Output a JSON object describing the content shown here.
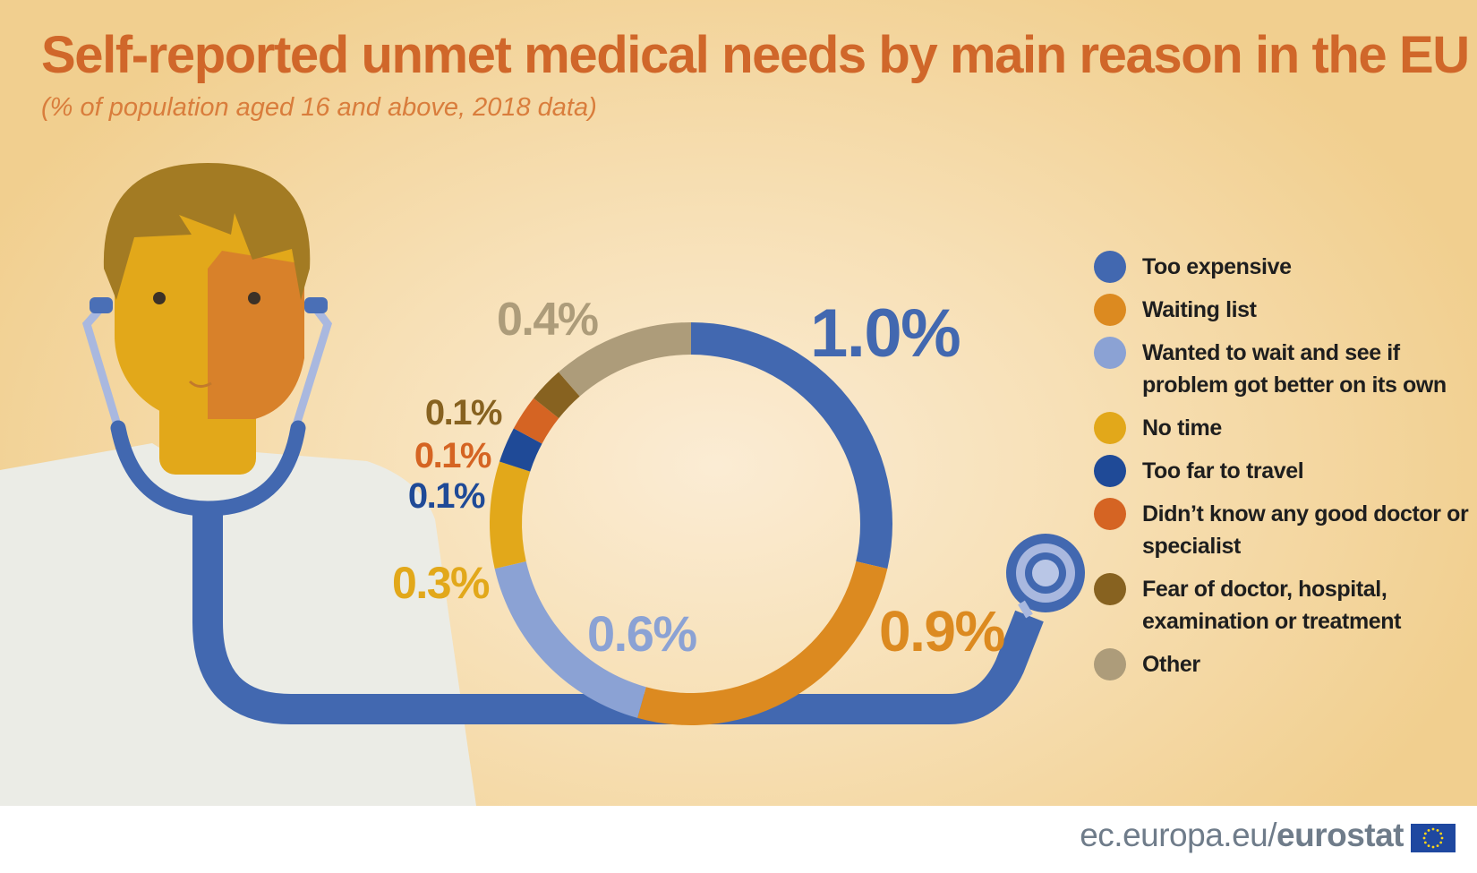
{
  "title": "Self-reported unmet medical needs by main reason in the EU",
  "subtitle": "(% of population aged 16 and above, 2018 data)",
  "chart_data": {
    "type": "donut",
    "title": "Self-reported unmet medical needs by main reason in the EU",
    "subtitle": "(% of population aged 16 and above, 2018 data)",
    "unit": "%",
    "slices": [
      {
        "name": "Too expensive",
        "value": 1.0,
        "label": "1.0%",
        "color": "#4268b0"
      },
      {
        "name": "Waiting list",
        "value": 0.9,
        "label": "0.9%",
        "color": "#dc8a20"
      },
      {
        "name": "Wanted to wait and see if problem got better on its own",
        "value": 0.6,
        "label": "0.6%",
        "color": "#8ba2d4"
      },
      {
        "name": "No time",
        "value": 0.3,
        "label": "0.3%",
        "color": "#e2a81a"
      },
      {
        "name": "Too far to travel",
        "value": 0.1,
        "label": "0.1%",
        "color": "#1f4a97"
      },
      {
        "name": "Didn’t know any good doctor or specialist",
        "value": 0.1,
        "label": "0.1%",
        "color": "#d56423"
      },
      {
        "name": "Fear of doctor, hospital, examination or treatment",
        "value": 0.1,
        "label": "0.1%",
        "color": "#876220"
      },
      {
        "name": "Other",
        "value": 0.4,
        "label": "0.4%",
        "color": "#ad9c7a"
      }
    ],
    "legend_position": "right"
  },
  "footer": {
    "site": "ec.europa.eu/",
    "brand": "eurostat"
  }
}
